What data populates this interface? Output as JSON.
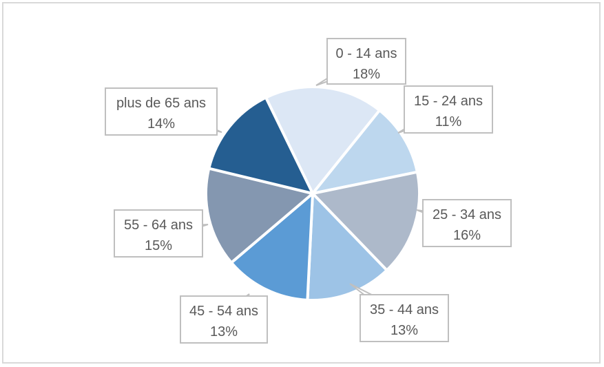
{
  "chart_data": {
    "type": "pie",
    "title": "",
    "slices": [
      {
        "label": "0 - 14 ans",
        "value": 18,
        "display": "18%",
        "color": "#dce7f5"
      },
      {
        "label": "15 - 24 ans",
        "value": 11,
        "display": "11%",
        "color": "#bdd7ee"
      },
      {
        "label": "25 - 34 ans",
        "value": 16,
        "display": "16%",
        "color": "#adb9ca"
      },
      {
        "label": "35 - 44 ans",
        "value": 13,
        "display": "13%",
        "color": "#9dc3e6"
      },
      {
        "label": "45 - 54 ans",
        "value": 13,
        "display": "13%",
        "color": "#5b9bd5"
      },
      {
        "label": "55 - 64 ans",
        "value": 15,
        "display": "15%",
        "color": "#8497b0"
      },
      {
        "label": "plus de 65 ans",
        "value": 14,
        "display": "14%",
        "color": "#255e91"
      }
    ],
    "start_angle_deg": -26,
    "direction": "clockwise",
    "data_labels": "callouts"
  }
}
